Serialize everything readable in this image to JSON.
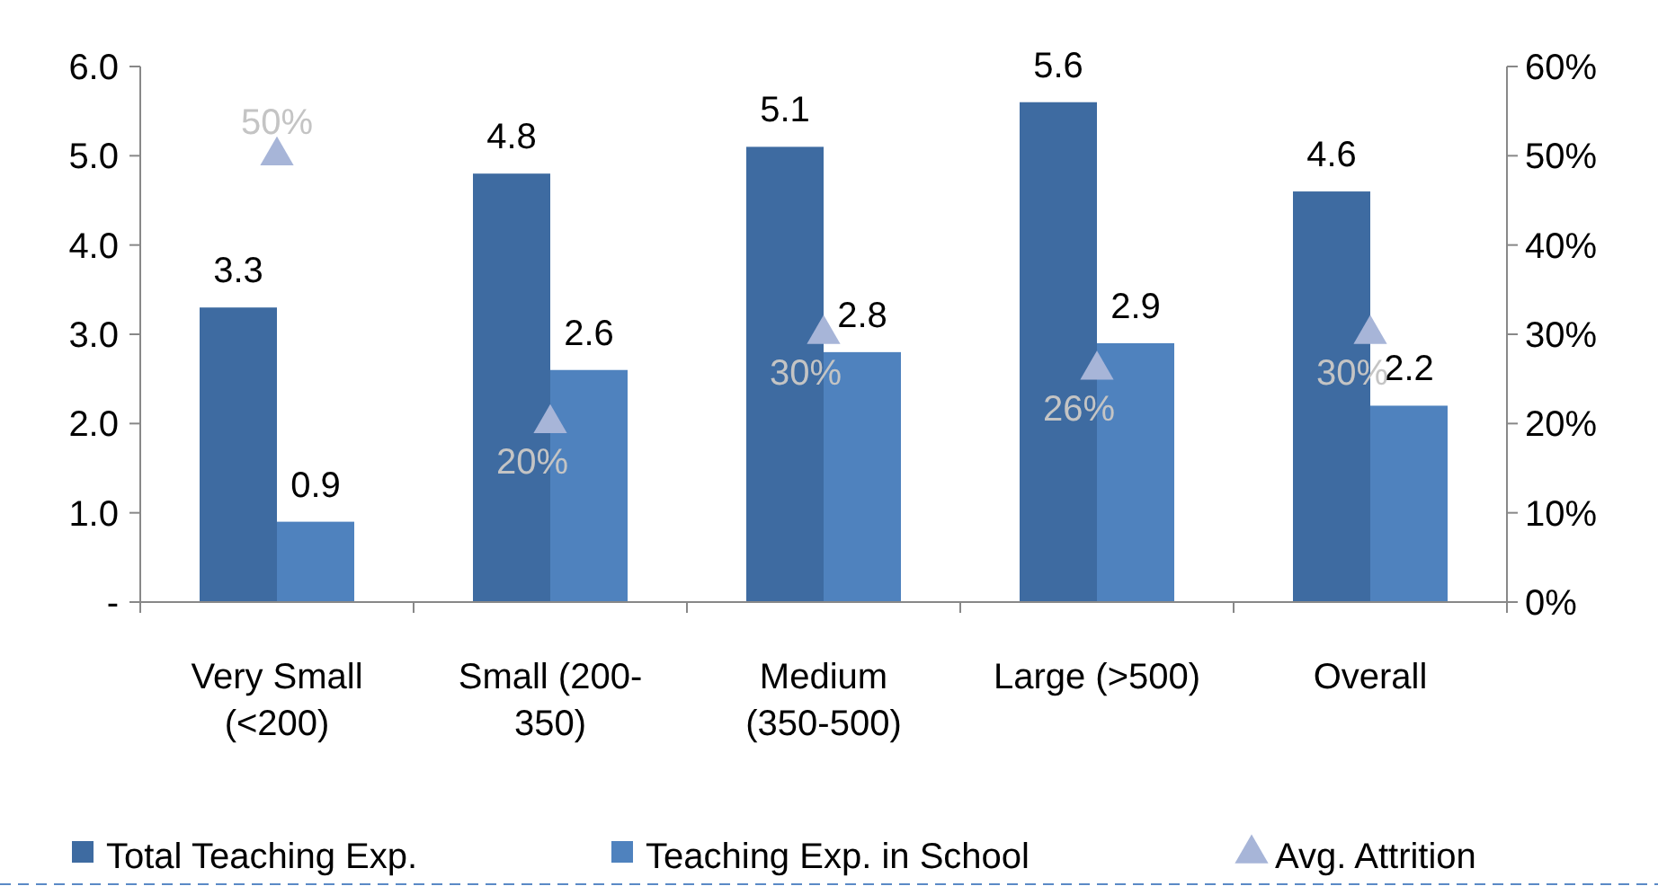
{
  "chart_data": {
    "type": "bar",
    "categories": [
      "Very Small\n(<200)",
      "Small (200-\n350)",
      "Medium\n(350-500)",
      "Large (>500)",
      "Overall"
    ],
    "series": [
      {
        "name": "Total Teaching Exp.",
        "color": "#3e6ba1",
        "values": [
          3.3,
          4.8,
          5.1,
          5.6,
          4.6
        ]
      },
      {
        "name": "Teaching Exp. in School",
        "color": "#4f82be",
        "values": [
          0.9,
          2.6,
          2.8,
          2.9,
          2.2
        ]
      },
      {
        "name": "Avg. Attrition",
        "type": "scatter",
        "axis": "y2",
        "color": "#a7b5d8",
        "marker": "triangle",
        "values": [
          50,
          20,
          30,
          26,
          30
        ],
        "value_labels": [
          "50%",
          "20%",
          "30%",
          "26%",
          "30%"
        ]
      }
    ],
    "ylim": [
      0,
      6
    ],
    "yticks": [
      {
        "value": 0,
        "label": "-"
      },
      {
        "value": 1,
        "label": "1.0"
      },
      {
        "value": 2,
        "label": "2.0"
      },
      {
        "value": 3,
        "label": "3.0"
      },
      {
        "value": 4,
        "label": "4.0"
      },
      {
        "value": 5,
        "label": "5.0"
      },
      {
        "value": 6,
        "label": "6.0"
      }
    ],
    "y2lim": [
      0,
      60
    ],
    "y2ticks": [
      {
        "value": 0,
        "label": "0%"
      },
      {
        "value": 10,
        "label": "10%"
      },
      {
        "value": 20,
        "label": "20%"
      },
      {
        "value": 30,
        "label": "30%"
      },
      {
        "value": 40,
        "label": "40%"
      },
      {
        "value": 50,
        "label": "50%"
      },
      {
        "value": 60,
        "label": "60%"
      }
    ],
    "data_labels": true,
    "grid": false,
    "legend": "bottom"
  }
}
